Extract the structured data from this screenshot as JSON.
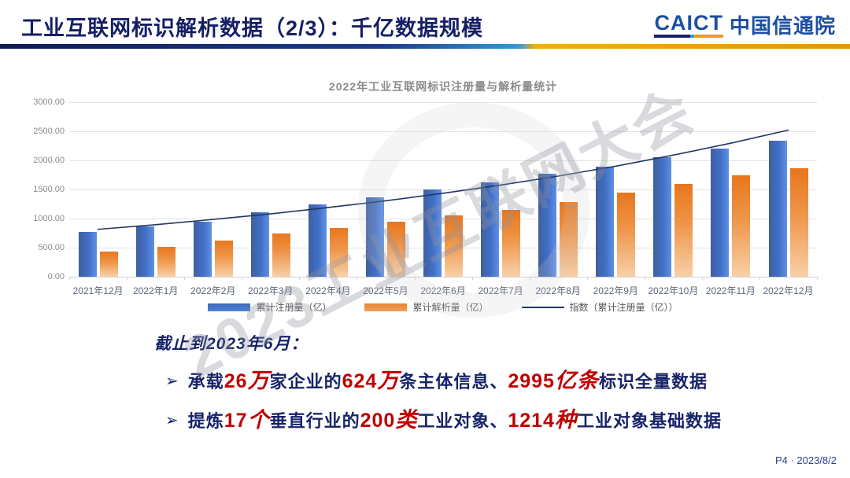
{
  "slide": {
    "header": {
      "title": "工业互联网标识解析数据（2/3）：千亿数据规模",
      "logo_en": "CAICT",
      "logo_cn": "中国信通院"
    },
    "watermark": "2023工业互联网大会",
    "summary": {
      "heading": "截止到2023年6月：",
      "bullet_arrow": "➢",
      "bullets": [
        {
          "segments": [
            {
              "text": "承载",
              "style": "navy"
            },
            {
              "text": "26",
              "style": "rn"
            },
            {
              "text": "万",
              "style": "ru"
            },
            {
              "text": "家企业的",
              "style": "navy"
            },
            {
              "text": "624",
              "style": "rn"
            },
            {
              "text": "万",
              "style": "ru"
            },
            {
              "text": "条主体信息、",
              "style": "navy"
            },
            {
              "text": "2995",
              "style": "rn"
            },
            {
              "text": "亿条",
              "style": "ru"
            },
            {
              "text": "标识全量数据",
              "style": "navy"
            }
          ]
        },
        {
          "segments": [
            {
              "text": "提炼",
              "style": "navy"
            },
            {
              "text": "17",
              "style": "rn"
            },
            {
              "text": "个",
              "style": "ru"
            },
            {
              "text": "垂直行业的",
              "style": "navy"
            },
            {
              "text": "200",
              "style": "rn"
            },
            {
              "text": "类",
              "style": "ru"
            },
            {
              "text": "工业对象、",
              "style": "navy"
            },
            {
              "text": "1214",
              "style": "rn"
            },
            {
              "text": "种",
              "style": "ru"
            },
            {
              "text": "工业对象基础数据",
              "style": "navy"
            }
          ]
        }
      ]
    },
    "footer": {
      "page_info": "P4 · 2023/8/2"
    }
  },
  "chart_data": {
    "type": "bar",
    "title": "2022年工业互联网标识注册量与解析量统计",
    "categories": [
      "2021年12月",
      "2022年1月",
      "2022年2月",
      "2022年3月",
      "2022年4月",
      "2022年5月",
      "2022年6月",
      "2022年7月",
      "2022年8月",
      "2022年9月",
      "2022年10月",
      "2022年11月",
      "2022年12月"
    ],
    "series": [
      {
        "name": "累计注册量（亿）",
        "type": "bar",
        "color": "#4472c4",
        "values": [
          770,
          870,
          950,
          1110,
          1240,
          1360,
          1500,
          1620,
          1770,
          1890,
          2050,
          2200,
          2340
        ]
      },
      {
        "name": "累计解析量（亿）",
        "type": "bar",
        "color": "#ed7d31",
        "values": [
          430,
          520,
          620,
          740,
          840,
          950,
          1050,
          1150,
          1290,
          1450,
          1590,
          1740,
          1860
        ]
      },
      {
        "name": "指数（累计注册量（亿））",
        "type": "line",
        "color": "#1f3864",
        "values": [
          815,
          895,
          985,
          1080,
          1190,
          1305,
          1435,
          1575,
          1730,
          1900,
          2090,
          2295,
          2520
        ]
      }
    ],
    "ylim": [
      0,
      3000
    ],
    "ytick_step": 500,
    "ytick_decimals": 2,
    "grid": true,
    "legend_position": "bottom"
  }
}
